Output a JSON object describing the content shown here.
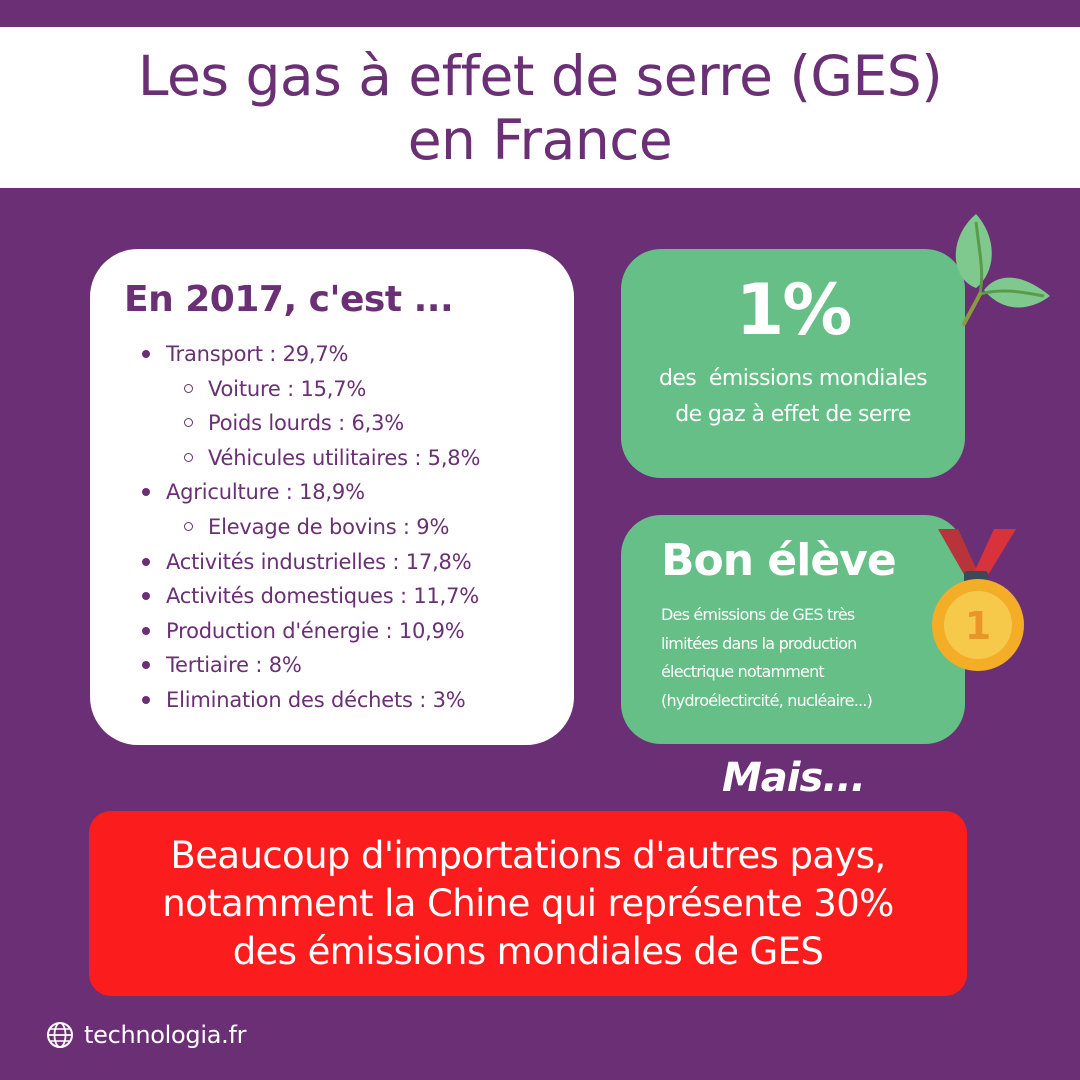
{
  "title": {
    "line1": "Les gas à effet de serre (GES)",
    "line2": "en France"
  },
  "breakdown": {
    "heading": "En 2017, c'est ...",
    "items": [
      {
        "label": "Transport : 29,7%",
        "level": 1
      },
      {
        "label": "Voiture : 15,7%",
        "level": 2
      },
      {
        "label": "Poids lourds : 6,3%",
        "level": 2
      },
      {
        "label": "Véhicules utilitaires : 5,8%",
        "level": 2
      },
      {
        "label": "Agriculture : 18,9%",
        "level": 1
      },
      {
        "label": "Elevage de bovins : 9%",
        "level": 2
      },
      {
        "label": "Activités industrielles : 17,8%",
        "level": 1
      },
      {
        "label": "Activités domestiques : 11,7%",
        "level": 1
      },
      {
        "label": "Production d'énergie : 10,9%",
        "level": 1
      },
      {
        "label": "Tertiaire : 8%",
        "level": 1
      },
      {
        "label": "Elimination des déchets : 3%",
        "level": 1
      }
    ]
  },
  "world_share": {
    "value": "1%",
    "desc_line1": "des  émissions mondiales",
    "desc_line2": "de gaz à effet de serre"
  },
  "good_student": {
    "title": "Bon élève",
    "desc_line1": "Des émissions de GES très",
    "desc_line2": "limitées dans la production",
    "desc_line3": "électrique notamment",
    "desc_line4": "(hydroélectircité, nucléaire...)",
    "medal_number": "1"
  },
  "mais": "Mais...",
  "imports": {
    "line1": "Beaucoup d'importations d'autres pays,",
    "line2": "notamment la Chine qui représente 30%",
    "line3": "des émissions mondiales de GES"
  },
  "footer": {
    "icon": "globe-icon",
    "site": "technologia.fr"
  },
  "colors": {
    "background": "#6a2f74",
    "green": "#65bf87",
    "red": "#fb1d1d"
  }
}
